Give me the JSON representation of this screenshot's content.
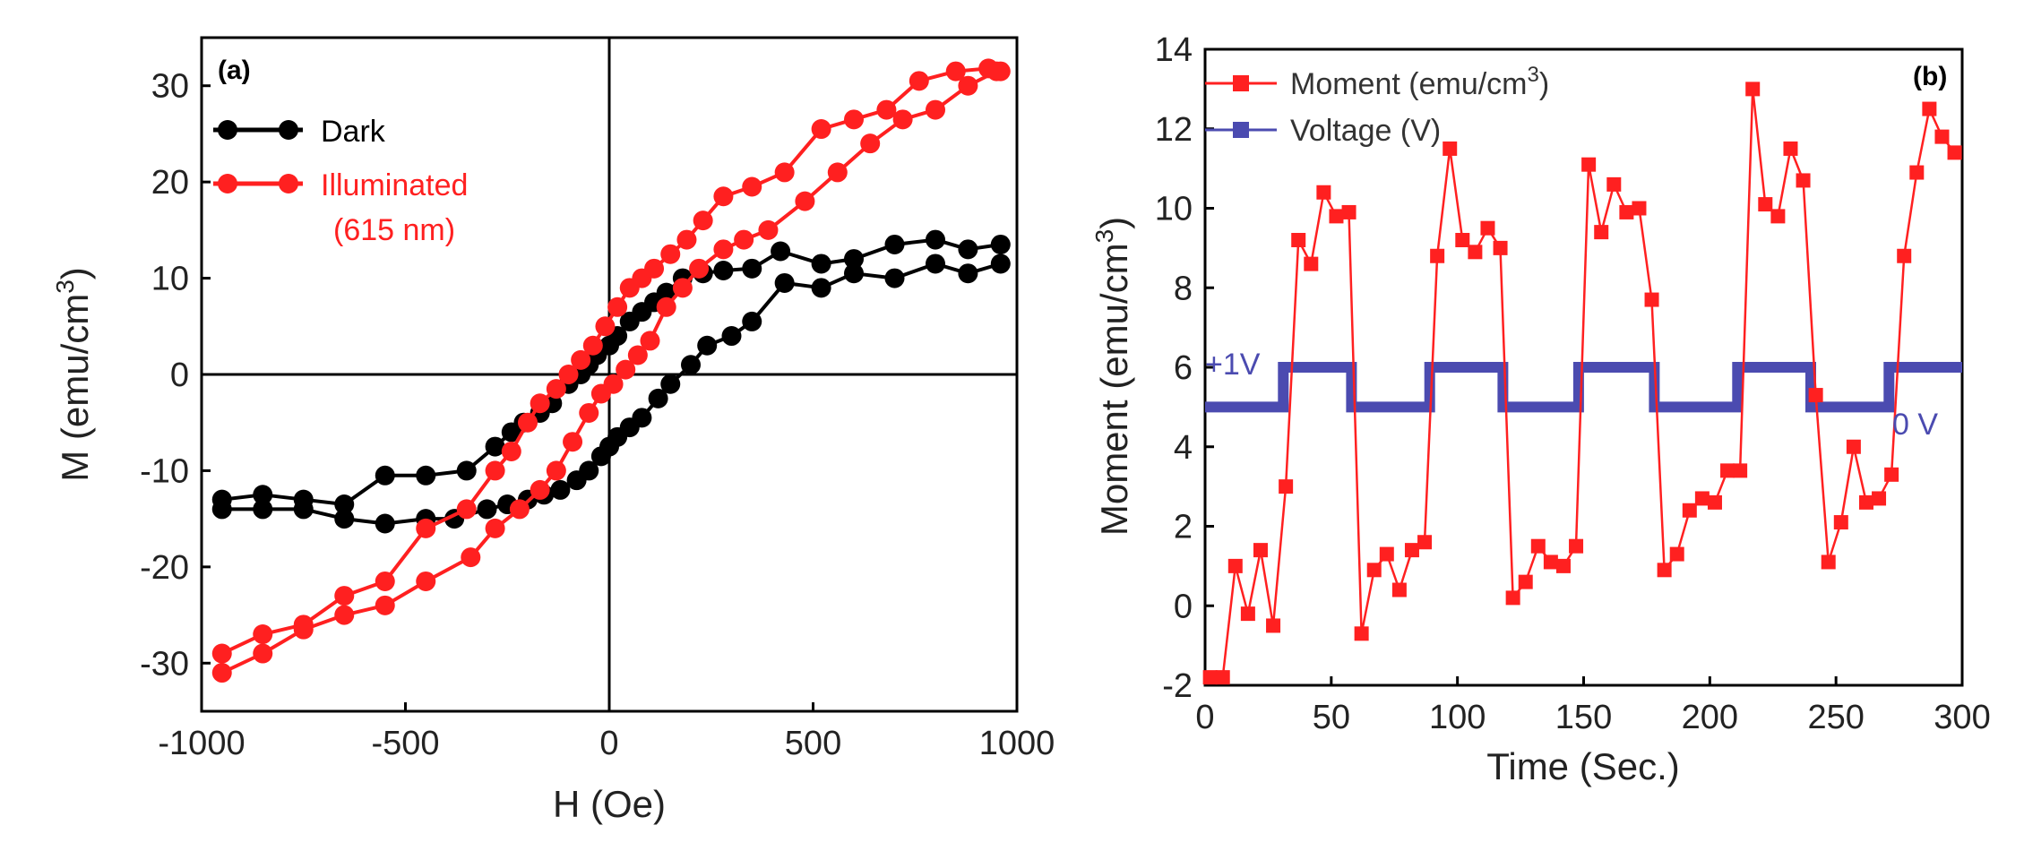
{
  "colors": {
    "dark": "#000000",
    "illuminated": "#ff2020",
    "moment": "#ff2020",
    "voltage": "#4b4bb0",
    "axis": "#000000"
  },
  "chart_data": [
    {
      "type": "line",
      "panel_label": "(a)",
      "xlabel": "H (Oe)",
      "ylabel": "M (emu/cm",
      "ylabel_sup": "3",
      "ylabel_close": ")",
      "xlim": [
        -1000,
        1000
      ],
      "ylim": [
        -35,
        35
      ],
      "xticks": [
        -1000,
        -500,
        0,
        500,
        1000
      ],
      "xtick_labels": [
        "-1000",
        "-500",
        "0",
        "500",
        "1000"
      ],
      "yticks": [
        -30,
        -20,
        -10,
        0,
        10,
        20,
        30
      ],
      "ytick_labels": [
        "-30",
        "-20",
        "-10",
        "0",
        "10",
        "20",
        "30"
      ],
      "legend": {
        "position": "top-left",
        "entries": [
          "Dark",
          "Illuminated",
          "(615 nm)"
        ]
      },
      "series": [
        {
          "name": "Dark",
          "color_key": "dark",
          "x": [
            -950,
            -850,
            -750,
            -650,
            -550,
            -450,
            -350,
            -280,
            -240,
            -210,
            -170,
            -140,
            -100,
            -70,
            -50,
            -30,
            0,
            20,
            50,
            80,
            110,
            140,
            180,
            230,
            280,
            350,
            420,
            520,
            600,
            700,
            800,
            880,
            960,
            960,
            880,
            800,
            700,
            600,
            520,
            430,
            350,
            300,
            240,
            200,
            150,
            120,
            80,
            50,
            20,
            0,
            -20,
            -50,
            -80,
            -120,
            -160,
            -200,
            -250,
            -300,
            -380,
            -450,
            -550,
            -650,
            -750,
            -850,
            -950
          ],
          "y": [
            -13,
            -12.5,
            -13,
            -13.5,
            -10.5,
            -10.5,
            -10,
            -7.5,
            -6,
            -5,
            -4,
            -3,
            -1,
            0,
            1,
            2,
            3,
            4,
            5.5,
            6.5,
            7.5,
            8.5,
            10,
            10.5,
            10.8,
            11,
            12.8,
            11.5,
            12,
            13.5,
            14,
            13,
            13.5,
            11.5,
            10.5,
            11.5,
            10,
            10.5,
            9,
            9.5,
            5.5,
            4,
            3,
            1,
            -1,
            -2.5,
            -4.5,
            -5.5,
            -6.5,
            -7.5,
            -8.5,
            -10,
            -11,
            -12,
            -12.5,
            -13,
            -13.5,
            -14,
            -15,
            -15,
            -15.5,
            -15,
            -14,
            -14,
            -14
          ]
        },
        {
          "name": "Illuminated",
          "color_key": "illuminated",
          "x": [
            -950,
            -850,
            -750,
            -650,
            -550,
            -450,
            -350,
            -280,
            -240,
            -200,
            -170,
            -130,
            -100,
            -70,
            -40,
            -10,
            20,
            50,
            80,
            110,
            150,
            190,
            230,
            280,
            350,
            430,
            520,
            600,
            680,
            760,
            850,
            930,
            960,
            950,
            880,
            800,
            720,
            640,
            560,
            480,
            390,
            330,
            280,
            220,
            180,
            140,
            100,
            70,
            40,
            10,
            -20,
            -50,
            -90,
            -130,
            -170,
            -220,
            -280,
            -340,
            -450,
            -550,
            -650,
            -750,
            -850,
            -950
          ],
          "y": [
            -29,
            -27,
            -26,
            -23,
            -21.5,
            -16,
            -14,
            -10,
            -8,
            -5,
            -3,
            -1.5,
            0,
            1.5,
            3,
            5,
            7,
            9,
            10,
            11,
            12.5,
            14,
            16,
            18.5,
            19.5,
            21,
            25.5,
            26.5,
            27.5,
            30.5,
            31.5,
            31.8,
            31.5,
            31.5,
            30,
            27.5,
            26.5,
            24,
            21,
            18,
            15,
            14,
            13,
            11,
            9,
            7,
            3.5,
            2,
            0.5,
            -1,
            -2,
            -4,
            -7,
            -10,
            -12,
            -14,
            -16,
            -19,
            -21.5,
            -24,
            -25,
            -26.5,
            -29,
            -31
          ]
        }
      ]
    },
    {
      "type": "line",
      "panel_label": "(b)",
      "xlabel": "Time (Sec.)",
      "ylabel": "Moment (emu/cm",
      "ylabel_sup": "3",
      "ylabel_close": ")",
      "xlim": [
        0,
        300
      ],
      "ylim": [
        -2,
        14
      ],
      "xticks": [
        0,
        50,
        100,
        150,
        200,
        250,
        300
      ],
      "xtick_labels": [
        "0",
        "50",
        "100",
        "150",
        "200",
        "250",
        "300"
      ],
      "yticks": [
        -2,
        0,
        2,
        4,
        6,
        8,
        10,
        12,
        14
      ],
      "ytick_labels": [
        "-2",
        "0",
        "2",
        "4",
        "6",
        "8",
        "10",
        "12",
        "14"
      ],
      "legend": {
        "position": "top-left",
        "entries": [
          "Moment (emu/cm",
          "3",
          ")",
          "Voltage (V)"
        ]
      },
      "annotations": [
        "+1V",
        "0 V"
      ],
      "series": [
        {
          "name": "Moment (emu/cm3)",
          "color_key": "moment",
          "x": [
            2,
            7,
            12,
            17,
            22,
            27,
            32,
            37,
            42,
            47,
            52,
            57,
            62,
            67,
            72,
            77,
            82,
            87,
            92,
            97,
            102,
            107,
            112,
            117,
            122,
            127,
            132,
            137,
            142,
            147,
            152,
            157,
            162,
            167,
            172,
            177,
            182,
            187,
            192,
            197,
            202,
            207,
            212,
            217,
            222,
            227,
            232,
            237,
            242,
            247,
            252,
            257,
            262,
            267,
            272,
            277,
            282,
            287,
            292,
            297
          ],
          "y": [
            -1.8,
            -1.8,
            1,
            -0.2,
            1.4,
            -0.5,
            3,
            9.2,
            8.6,
            10.4,
            9.8,
            9.9,
            -0.7,
            0.9,
            1.3,
            0.4,
            1.4,
            1.6,
            8.8,
            11.5,
            9.2,
            8.9,
            9.5,
            9.0,
            0.2,
            0.6,
            1.5,
            1.1,
            1.0,
            1.5,
            11.1,
            9.4,
            10.6,
            9.9,
            10,
            7.7,
            0.9,
            1.3,
            2.4,
            2.7,
            2.6,
            3.4,
            3.4,
            13.0,
            10.1,
            9.8,
            11.5,
            10.7,
            5.3,
            1.1,
            2.1,
            4.0,
            2.6,
            2.7,
            3.3,
            8.8,
            10.9,
            12.5,
            11.8,
            11.4
          ]
        },
        {
          "name": "Voltage (V)",
          "color_key": "voltage",
          "x": [
            0,
            31,
            31,
            58,
            58,
            89,
            89,
            118,
            118,
            148,
            148,
            178,
            178,
            211,
            211,
            240,
            240,
            271,
            271,
            300
          ],
          "y": [
            5,
            5,
            6,
            6,
            5,
            5,
            6,
            6,
            5,
            5,
            6,
            6,
            5,
            5,
            6,
            6,
            5,
            5,
            6,
            6
          ]
        }
      ]
    }
  ]
}
